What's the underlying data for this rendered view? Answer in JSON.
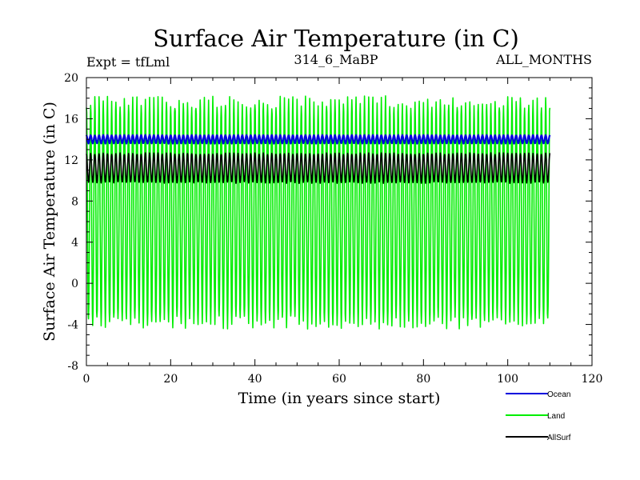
{
  "chart_data": {
    "type": "line",
    "title": "Surface Air Temperature (in C)",
    "annotations": {
      "left": "Expt = tfLml",
      "center": "314_6_MaBP",
      "right": "ALL_MONTHS"
    },
    "xlabel": "Time (in years since start)",
    "ylabel": "Surface Air Temperature (in C)",
    "xlim": [
      0,
      120
    ],
    "ylim": [
      -8,
      20
    ],
    "xticks": [
      0,
      20,
      40,
      60,
      80,
      100,
      120
    ],
    "yticks": [
      -8,
      -4,
      0,
      4,
      8,
      12,
      16,
      20
    ],
    "legend_position": "bottom-right",
    "time_span_years": 110,
    "series": [
      {
        "name": "Ocean",
        "color": "#0000dd",
        "seasonal_min": 13.6,
        "seasonal_max": 14.4,
        "mean": 14.0
      },
      {
        "name": "Land",
        "color": "#00ee00",
        "seasonal_min": -3.8,
        "seasonal_max": 17.6,
        "mean": 6.9
      },
      {
        "name": "AllSurf",
        "color": "#000000",
        "seasonal_min": 9.8,
        "seasonal_max": 12.6,
        "mean": 11.2
      }
    ]
  }
}
